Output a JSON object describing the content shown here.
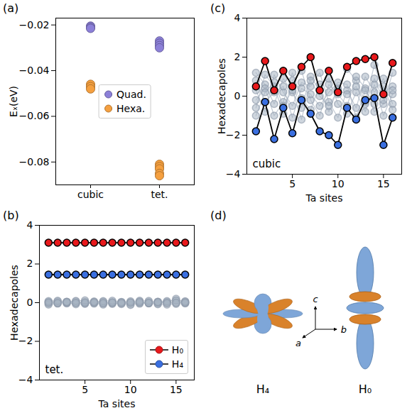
{
  "chart_data": [
    {
      "title": "(a)",
      "type": "scatter",
      "categories": [
        "cubic",
        "tet."
      ],
      "ylabel": "Eₓ(eV)",
      "ylim": [
        -0.09,
        -0.017
      ],
      "yticks": [
        {
          "value": -0.08,
          "label": "−0.08"
        },
        {
          "value": -0.06,
          "label": "−0.06"
        },
        {
          "value": -0.04,
          "label": "−0.04"
        },
        {
          "value": -0.02,
          "label": "−0.02"
        }
      ],
      "legend": "center",
      "series": [
        {
          "name": "Quad.",
          "color": "#8c80d8",
          "marker": "circle",
          "x": [
            "cubic",
            "cubic",
            "cubic",
            "tet.",
            "tet.",
            "tet.",
            "tet."
          ],
          "values": [
            -0.0205,
            -0.021,
            -0.0215,
            -0.027,
            -0.028,
            -0.029,
            -0.03
          ]
        },
        {
          "name": "Hexa.",
          "color": "#f5a040",
          "marker": "circle",
          "x": [
            "cubic",
            "cubic",
            "cubic",
            "tet.",
            "tet.",
            "tet.",
            "tet.",
            "tet."
          ],
          "values": [
            -0.046,
            -0.047,
            -0.048,
            -0.081,
            -0.082,
            -0.083,
            -0.085,
            -0.086
          ]
        }
      ]
    },
    {
      "title": "(b)",
      "type": "line",
      "xlabel": "Ta sites",
      "ylabel": "Hexadecapoles",
      "annotations": [
        "tet."
      ],
      "x": [
        1,
        2,
        3,
        4,
        5,
        6,
        7,
        8,
        9,
        10,
        11,
        12,
        13,
        14,
        15,
        16
      ],
      "xlim": [
        0,
        17
      ],
      "xticks": [
        5,
        10,
        15
      ],
      "ylim": [
        -4,
        4
      ],
      "yticks": [
        {
          "value": -4,
          "label": "−4"
        },
        {
          "value": -2,
          "label": "−2"
        },
        0,
        2,
        4
      ],
      "legend": "lower right",
      "series": [
        {
          "color": "#a8b4c2",
          "marker": "circle",
          "line_style": "solid",
          "values": [
            0.02,
            -0.03,
            0.05,
            0.0,
            -0.02,
            0.04,
            -0.05,
            0.03,
            0.0,
            -0.08,
            0.02,
            -0.04,
            0.05,
            0.0,
            0.1,
            -0.02
          ]
        },
        {
          "color": "#a8b4c2",
          "marker": "circle",
          "line_style": "solid",
          "values": [
            -0.05,
            0.03,
            -0.02,
            0.06,
            -0.04,
            0.0,
            0.05,
            -0.06,
            0.03,
            0.0,
            -0.03,
            0.04,
            -0.05,
            0.02,
            -0.03,
            0.05
          ]
        },
        {
          "color": "#a8b4c2",
          "marker": "circle",
          "line_style": "solid",
          "values": [
            0.04,
            0.06,
            -0.04,
            -0.03,
            0.05,
            -0.05,
            0.02,
            0.0,
            -0.04,
            0.03,
            0.06,
            -0.02,
            0.0,
            0.04,
            0.2,
            0.0
          ]
        },
        {
          "color": "#a8b4c2",
          "marker": "circle",
          "line_style": "solid",
          "values": [
            -0.1,
            -0.05,
            0.0,
            -0.08,
            -0.06,
            -0.02,
            -0.1,
            -0.04,
            -0.07,
            -0.12,
            -0.05,
            -0.03,
            -0.08,
            -0.1,
            -0.06,
            -0.04
          ]
        },
        {
          "color": "#a8b4c2",
          "marker": "circle",
          "line_style": "solid",
          "values": [
            0.08,
            0.1,
            0.05,
            0.09,
            0.12,
            0.06,
            0.08,
            0.1,
            0.04,
            0.07,
            0.1,
            0.09,
            0.05,
            0.08,
            0.12,
            0.07
          ]
        },
        {
          "color": "#a8b4c2",
          "marker": "circle",
          "line_style": "solid",
          "values": [
            0.0,
            -0.02,
            0.03,
            -0.01,
            0.0,
            0.02,
            -0.03,
            0.01,
            -0.02,
            0.0,
            0.03,
            -0.01,
            0.02,
            -0.03,
            0.0,
            0.01
          ]
        },
        {
          "name": "H₀",
          "color": "#e8191c",
          "marker": "circle",
          "line_style": "solid",
          "values": [
            3.1,
            3.1,
            3.1,
            3.1,
            3.1,
            3.1,
            3.1,
            3.1,
            3.1,
            3.1,
            3.1,
            3.1,
            3.1,
            3.1,
            3.1,
            3.1
          ]
        },
        {
          "name": "H₄",
          "color": "#3a6fe0",
          "marker": "circle",
          "line_style": "solid",
          "values": [
            1.45,
            1.45,
            1.45,
            1.45,
            1.45,
            1.45,
            1.45,
            1.45,
            1.45,
            1.45,
            1.45,
            1.45,
            1.45,
            1.45,
            1.45,
            1.45
          ]
        }
      ]
    },
    {
      "title": "(c)",
      "type": "line",
      "xlabel": "Ta sites",
      "ylabel": "Hexadecapoles",
      "annotations": [
        "cubic"
      ],
      "x": [
        1,
        2,
        3,
        4,
        5,
        6,
        7,
        8,
        9,
        10,
        11,
        12,
        13,
        14,
        15,
        16
      ],
      "xlim": [
        0,
        17
      ],
      "xticks": [
        5,
        10,
        15
      ],
      "ylim": [
        -4,
        4
      ],
      "yticks": [
        {
          "value": -4,
          "label": "−4"
        },
        {
          "value": -2,
          "label": "−2"
        },
        0,
        2,
        4
      ],
      "series": [
        {
          "color": "#a8b4c2",
          "marker": "circle",
          "line_style": "solid",
          "values": [
            1.2,
            0.6,
            -0.4,
            0.9,
            0.2,
            -0.6,
            1.0,
            0.3,
            -0.8,
            0.4,
            1.4,
            0.8,
            -0.3,
            1.6,
            0.2,
            0.5
          ]
        },
        {
          "color": "#a8b4c2",
          "marker": "circle",
          "line_style": "solid",
          "values": [
            -0.6,
            1.1,
            0.5,
            -0.9,
            0.8,
            1.3,
            -0.2,
            -1.0,
            0.6,
            0.1,
            -0.5,
            1.0,
            0.4,
            -0.8,
            -0.4,
            1.2
          ]
        },
        {
          "color": "#a8b4c2",
          "marker": "circle",
          "line_style": "solid",
          "values": [
            0.3,
            -0.8,
            1.1,
            0.2,
            -0.5,
            0.7,
            0.5,
            1.2,
            -0.3,
            -1.1,
            0.3,
            -0.6,
            1.0,
            0.2,
            0.9,
            -0.4
          ]
        },
        {
          "color": "#a8b4c2",
          "marker": "circle",
          "line_style": "solid",
          "values": [
            -0.2,
            0.4,
            -1.0,
            -0.3,
            1.2,
            -0.1,
            -0.7,
            0.6,
            0.9,
            -0.4,
            -0.9,
            0.2,
            -0.8,
            0.6,
            -1.0,
            0.1
          ]
        },
        {
          "color": "#a8b4c2",
          "marker": "circle",
          "line_style": "solid",
          "values": [
            0.8,
            -0.3,
            0.2,
            0.5,
            -1.1,
            0.4,
            0.1,
            -0.5,
            0.2,
            0.7,
            0.6,
            -1.1,
            0.3,
            -0.4,
            0.5,
            -0.7
          ]
        },
        {
          "color": "#a8b4c2",
          "marker": "circle",
          "line_style": "solid",
          "values": [
            -1.0,
            0.2,
            0.7,
            -0.5,
            0.3,
            -1.2,
            0.8,
            0.0,
            -0.5,
            0.3,
            0.1,
            0.5,
            -0.4,
            0.9,
            -0.2,
            0.3
          ]
        },
        {
          "name": "H₀",
          "color": "#e8191c",
          "marker": "circle",
          "line_style": "solid",
          "values": [
            0.5,
            1.8,
            0.3,
            1.3,
            0.5,
            1.5,
            2.0,
            0.3,
            1.3,
            0.2,
            1.5,
            1.8,
            1.9,
            2.0,
            0.1,
            1.7
          ]
        },
        {
          "name": "H₄",
          "color": "#3a6fe0",
          "marker": "circle",
          "line_style": "solid",
          "values": [
            -1.8,
            -0.3,
            -2.2,
            -0.6,
            -1.9,
            -0.2,
            -0.9,
            -1.8,
            -2.0,
            -2.5,
            -0.6,
            -1.2,
            -0.2,
            -0.1,
            -2.5,
            -1.1
          ]
        }
      ]
    }
  ],
  "diagram": {
    "title": "(d)",
    "labels": [
      "H₄",
      "H₀"
    ],
    "axes": [
      "a",
      "b",
      "c"
    ]
  }
}
